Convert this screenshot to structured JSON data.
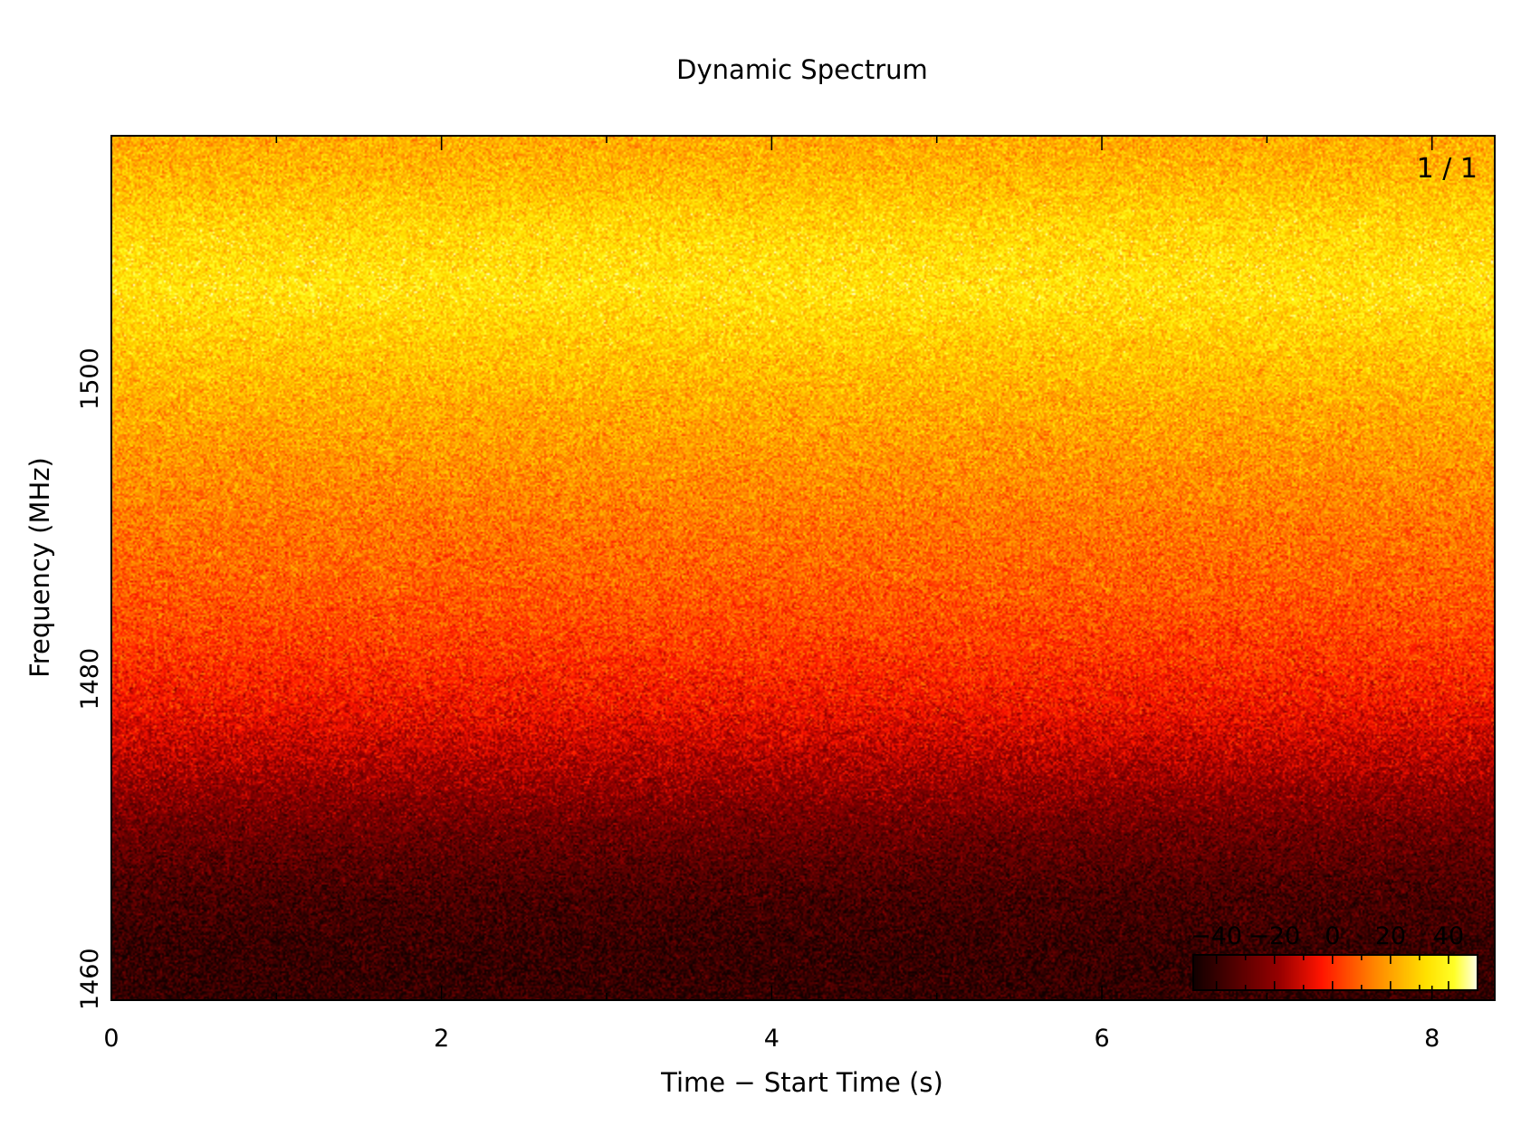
{
  "chart_data": {
    "type": "heatmap",
    "title": "Dynamic Spectrum",
    "xlabel": "Time − Start Time (s)",
    "ylabel": "Frequency (MHz)",
    "xlim": [
      0,
      8.38
    ],
    "ylim": [
      1516.2,
      1458.6
    ],
    "x_ticks": [
      0,
      2,
      4,
      6,
      8
    ],
    "y_ticks": [
      1460,
      1480,
      1500
    ],
    "panel_label": "1 / 1",
    "colormap": "heat",
    "colorbar": {
      "range": [
        -48,
        50
      ],
      "ticks": [
        -40,
        -20,
        0,
        20,
        40
      ],
      "tick_labels": [
        "−40",
        "−20",
        "0",
        "20",
        "40"
      ],
      "placement": "bottom-right"
    },
    "frequency_profile": {
      "frequency_mhz": [
        1458.6,
        1462,
        1466,
        1470,
        1474,
        1478,
        1482,
        1486,
        1490,
        1494,
        1498,
        1502,
        1506,
        1510,
        1514,
        1516.2
      ],
      "mean_intensity": [
        -41,
        -40,
        -36,
        -28,
        -17,
        -6,
        2,
        8,
        12,
        17,
        22,
        28,
        34,
        31,
        24,
        22
      ]
    },
    "noise_amplitude": 13,
    "colors": {
      "background": "#ffffff",
      "axes": "#000000"
    }
  }
}
